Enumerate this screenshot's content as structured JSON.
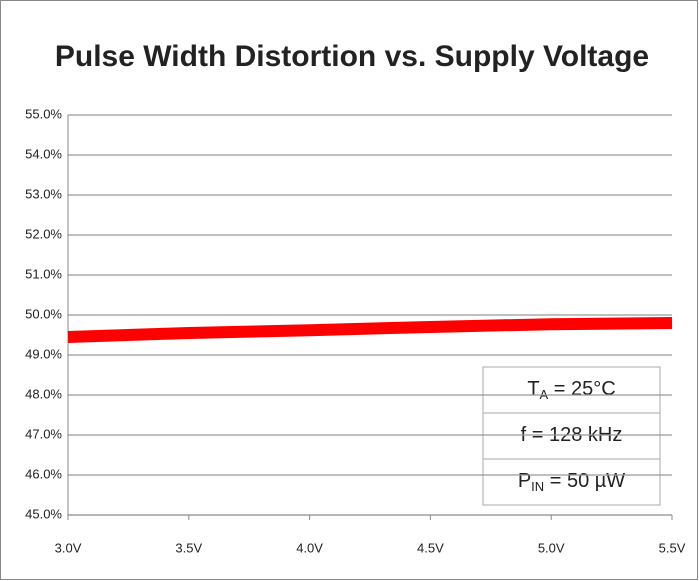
{
  "chart_data": {
    "type": "line",
    "title": "Pulse Width Distortion vs. Supply Voltage",
    "x": [
      3.0,
      3.5,
      4.0,
      4.5,
      5.0,
      5.5
    ],
    "series": [
      {
        "color": "#ff0000",
        "values": [
          49.45,
          49.55,
          49.62,
          49.7,
          49.77,
          49.8
        ]
      }
    ],
    "xlim": [
      3.0,
      5.5
    ],
    "xticks": [
      {
        "value": 3.0,
        "label": "3.0V"
      },
      {
        "value": 3.5,
        "label": "3.5V"
      },
      {
        "value": 4.0,
        "label": "4.0V"
      },
      {
        "value": 4.5,
        "label": "4.5V"
      },
      {
        "value": 5.0,
        "label": "5.0V"
      },
      {
        "value": 5.5,
        "label": "5.5V"
      }
    ],
    "ylim": [
      45,
      55
    ],
    "yticks": [
      {
        "value": 45,
        "label": "45.0%"
      },
      {
        "value": 46,
        "label": "46.0%"
      },
      {
        "value": 47,
        "label": "47.0%"
      },
      {
        "value": 48,
        "label": "48.0%"
      },
      {
        "value": 49,
        "label": "49.0%"
      },
      {
        "value": 50,
        "label": "50.0%"
      },
      {
        "value": 51,
        "label": "51.0%"
      },
      {
        "value": 52,
        "label": "52.0%"
      },
      {
        "value": 53,
        "label": "53.0%"
      },
      {
        "value": 54,
        "label": "54.0%"
      },
      {
        "value": 55,
        "label": "55.0%"
      }
    ],
    "grid": true,
    "annotations": [
      {
        "main": "T",
        "sub": "A",
        "rest": " = 25°C"
      },
      {
        "main": "f = 128 kHz"
      },
      {
        "main": "P",
        "sub": "IN",
        "rest": " = 50 µW"
      }
    ]
  }
}
